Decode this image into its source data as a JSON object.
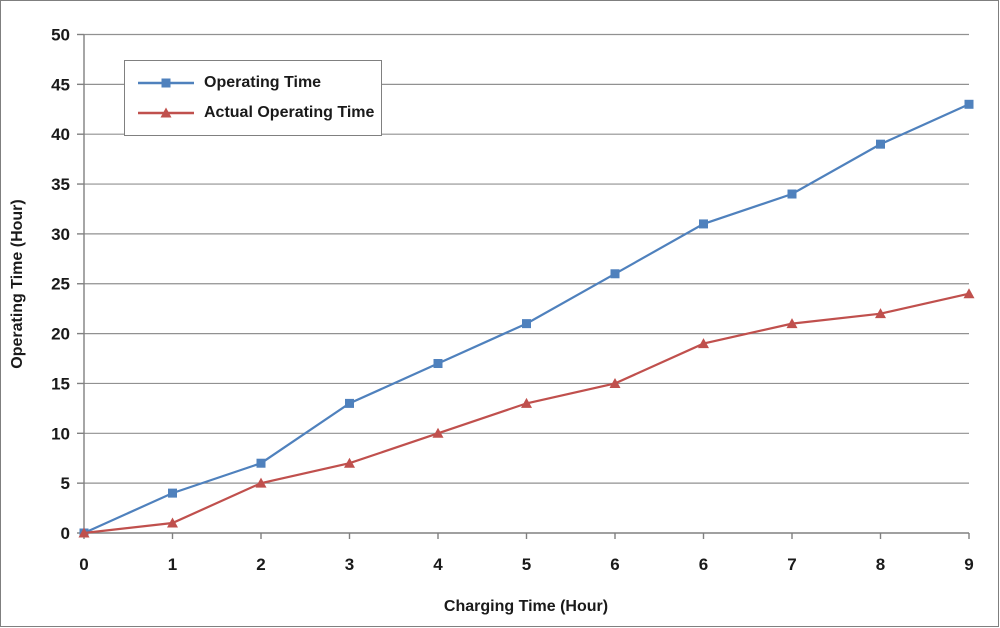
{
  "chart_data": {
    "type": "line",
    "title": "",
    "xlabel": "Charging Time (Hour)",
    "ylabel": "Operating Time (Hour)",
    "categories": [
      "0",
      "1",
      "2",
      "3",
      "4",
      "5",
      "6",
      "6",
      "7",
      "8",
      "9"
    ],
    "series": [
      {
        "name": "Operating Time",
        "color": "#4F81BD",
        "marker": "square",
        "values": [
          0,
          4,
          7,
          13,
          17,
          21,
          26,
          31,
          34,
          39,
          43
        ]
      },
      {
        "name": "Actual Operating Time",
        "color": "#C0504D",
        "marker": "triangle",
        "values": [
          0,
          1,
          5,
          7,
          10,
          13,
          15,
          19,
          21,
          22,
          24
        ]
      }
    ],
    "ylim": [
      0,
      50
    ],
    "y_tick_step": 5,
    "grid": "horizontal",
    "legend_position": "top-left-inside"
  },
  "colors": {
    "grid": "#919191",
    "axis": "#808080",
    "text": "#1a1a1a",
    "legend_border": "#808080",
    "frame_border": "#7f7f7f",
    "background": "#ffffff"
  }
}
